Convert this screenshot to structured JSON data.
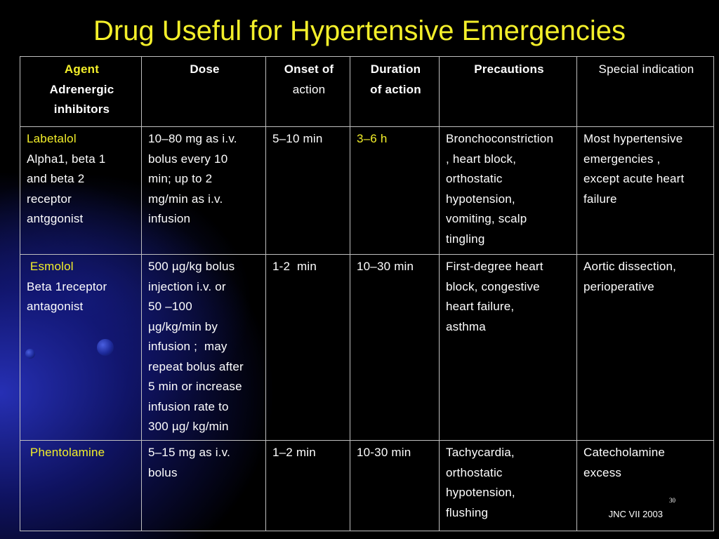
{
  "title": "Drug Useful for Hypertensive Emergencies",
  "header": {
    "agent": "Agent",
    "agent_sub": [
      "Adrenergic",
      "inhibitors"
    ],
    "dose": "Dose",
    "onset": [
      "Onset of",
      "action"
    ],
    "duration": [
      "Duration",
      "of action"
    ],
    "precautions": "Precautions",
    "special": "Special indication"
  },
  "rows": [
    {
      "agent": [
        "Labetalol",
        "Alpha1, beta 1",
        "and beta 2",
        "receptor",
        "antggonist"
      ],
      "dose": [
        "10–80 mg as i.v.",
        "bolus every 10",
        "min; up to 2",
        "mg/min as i.v.",
        "infusion"
      ],
      "onset": "5–10 min",
      "duration": "3–6 h",
      "precautions": [
        "Bronchoconstriction",
        ", heart block,",
        "orthostatic",
        "hypotension,",
        "vomiting, scalp",
        "tingling"
      ],
      "special": [
        "Most hypertensive",
        "emergencies ,",
        "except acute heart",
        "failure"
      ]
    },
    {
      "agent": [
        " Esmolol",
        "Beta 1receptor",
        "antagonist"
      ],
      "dose": [
        "500 µg/kg bolus",
        "injection i.v. or",
        "50 –100",
        "µg/kg/min by",
        "infusion ;  may",
        "repeat bolus after",
        "5 min or increase",
        "infusion rate to",
        "300 µg/ kg/min"
      ],
      "onset": "1-2  min",
      "duration": "10–30 min",
      "precautions": [
        "First-degree heart",
        "block, congestive",
        "heart failure,",
        "asthma"
      ],
      "special": [
        "Aortic dissection,",
        "perioperative"
      ]
    },
    {
      "agent": [
        " Phentolamine"
      ],
      "dose": [
        "5–15 mg as i.v.",
        "bolus"
      ],
      "onset": "1–2 min",
      "duration": "10-30 min",
      "precautions": [
        "Tachycardia,",
        "orthostatic",
        "hypotension,",
        "flushing"
      ],
      "special": [
        "Catecholamine",
        "excess"
      ]
    }
  ],
  "page_number": "30",
  "source": "JNC VII 2003"
}
